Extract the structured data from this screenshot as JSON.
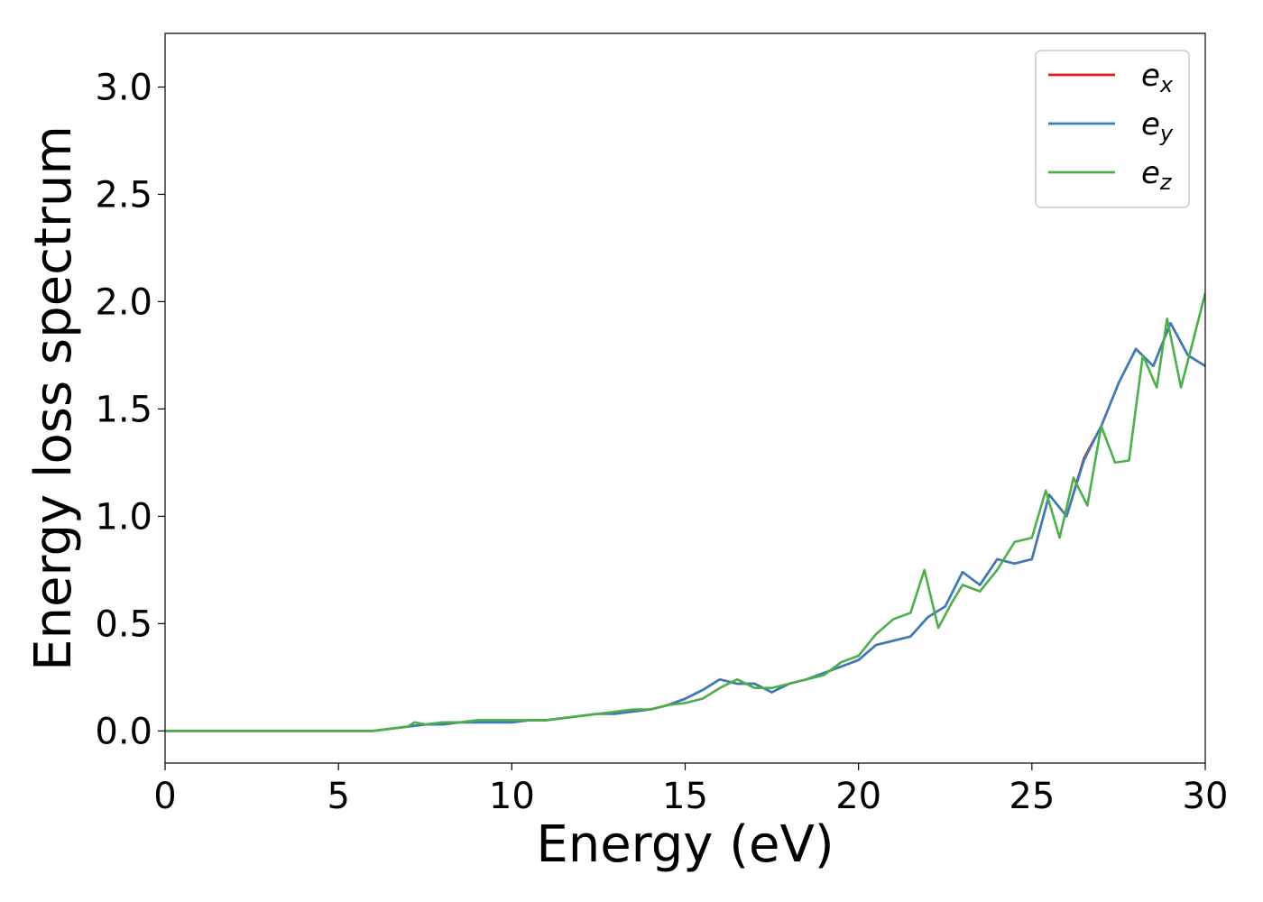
{
  "chart_data": {
    "type": "line",
    "xlabel": "Energy (eV)",
    "ylabel": "Energy loss spectrum",
    "xlim": [
      0,
      30
    ],
    "ylim": [
      -0.15,
      3.25
    ],
    "xticks": [
      "0",
      "5",
      "10",
      "15",
      "20",
      "25",
      "30"
    ],
    "yticks": [
      "0.0",
      "0.5",
      "1.0",
      "1.5",
      "2.0",
      "2.5",
      "3.0"
    ],
    "grid": false,
    "legend_position": "top-right",
    "series": [
      {
        "name": "e",
        "subscript": "x",
        "color": "#e41a1c",
        "x": [
          0,
          6.0,
          6.5,
          7.0,
          7.5,
          8.0,
          8.5,
          9.0,
          9.5,
          10.0,
          10.5,
          11.0,
          11.5,
          12.0,
          12.5,
          13.0,
          13.5,
          14.0,
          14.5,
          15.0,
          15.5,
          16.0,
          16.5,
          17.0,
          17.5,
          18.0,
          18.5,
          19.0,
          19.5,
          20.0,
          20.5,
          21.0,
          21.5,
          22.0,
          22.5,
          23.0,
          23.5,
          24.0,
          24.5,
          25.0,
          25.5,
          26.0,
          26.5,
          27.0,
          27.5,
          28.0,
          28.5,
          29.0,
          29.5,
          30.0
        ],
        "y": [
          0.0,
          0.0,
          0.01,
          0.02,
          0.03,
          0.03,
          0.04,
          0.04,
          0.04,
          0.04,
          0.05,
          0.05,
          0.06,
          0.07,
          0.08,
          0.08,
          0.09,
          0.1,
          0.12,
          0.15,
          0.19,
          0.24,
          0.22,
          0.22,
          0.18,
          0.22,
          0.24,
          0.27,
          0.3,
          0.33,
          0.4,
          0.42,
          0.44,
          0.53,
          0.58,
          0.74,
          0.68,
          0.8,
          0.78,
          0.8,
          1.1,
          1.0,
          1.27,
          1.42,
          1.62,
          1.78,
          1.7,
          1.9,
          1.75,
          1.7
        ]
      },
      {
        "name": "e",
        "subscript": "y",
        "color": "#377eb8",
        "x": [
          0,
          6.0,
          6.5,
          7.0,
          7.5,
          8.0,
          8.5,
          9.0,
          9.5,
          10.0,
          10.5,
          11.0,
          11.5,
          12.0,
          12.5,
          13.0,
          13.5,
          14.0,
          14.5,
          15.0,
          15.5,
          16.0,
          16.5,
          17.0,
          17.5,
          18.0,
          18.5,
          19.0,
          19.5,
          20.0,
          20.5,
          21.0,
          21.5,
          22.0,
          22.5,
          23.0,
          23.5,
          24.0,
          24.5,
          25.0,
          25.5,
          26.0,
          26.5,
          27.0,
          27.5,
          28.0,
          28.5,
          29.0,
          29.5,
          30.0
        ],
        "y": [
          0.0,
          0.0,
          0.01,
          0.02,
          0.03,
          0.03,
          0.04,
          0.04,
          0.04,
          0.04,
          0.05,
          0.05,
          0.06,
          0.07,
          0.08,
          0.08,
          0.09,
          0.1,
          0.12,
          0.15,
          0.19,
          0.24,
          0.22,
          0.22,
          0.18,
          0.22,
          0.24,
          0.27,
          0.3,
          0.33,
          0.4,
          0.42,
          0.44,
          0.53,
          0.58,
          0.74,
          0.68,
          0.8,
          0.78,
          0.8,
          1.1,
          1.0,
          1.26,
          1.42,
          1.62,
          1.78,
          1.7,
          1.9,
          1.75,
          1.7
        ]
      },
      {
        "name": "e",
        "subscript": "z",
        "color": "#4daf4a",
        "x": [
          0,
          6.0,
          6.5,
          7.0,
          7.2,
          7.5,
          8.0,
          8.5,
          9.0,
          9.5,
          10.0,
          10.5,
          11.0,
          11.5,
          12.0,
          12.5,
          13.0,
          13.5,
          14.0,
          14.5,
          15.0,
          15.5,
          16.0,
          16.5,
          17.0,
          17.5,
          18.0,
          18.5,
          19.0,
          19.5,
          20.0,
          20.5,
          21.0,
          21.5,
          21.9,
          22.3,
          22.7,
          23.0,
          23.5,
          24.0,
          24.5,
          25.0,
          25.4,
          25.8,
          26.2,
          26.6,
          27.0,
          27.4,
          27.8,
          28.2,
          28.6,
          28.9,
          29.3,
          29.7,
          30.0
        ],
        "y": [
          0.0,
          0.0,
          0.01,
          0.02,
          0.04,
          0.03,
          0.04,
          0.04,
          0.05,
          0.05,
          0.05,
          0.05,
          0.05,
          0.06,
          0.07,
          0.08,
          0.09,
          0.1,
          0.1,
          0.12,
          0.13,
          0.15,
          0.2,
          0.24,
          0.2,
          0.2,
          0.22,
          0.24,
          0.26,
          0.32,
          0.35,
          0.45,
          0.52,
          0.55,
          0.75,
          0.48,
          0.6,
          0.68,
          0.65,
          0.75,
          0.88,
          0.9,
          1.12,
          0.9,
          1.18,
          1.05,
          1.42,
          1.25,
          1.26,
          1.75,
          1.6,
          1.92,
          1.6,
          1.85,
          2.04
        ]
      }
    ]
  }
}
